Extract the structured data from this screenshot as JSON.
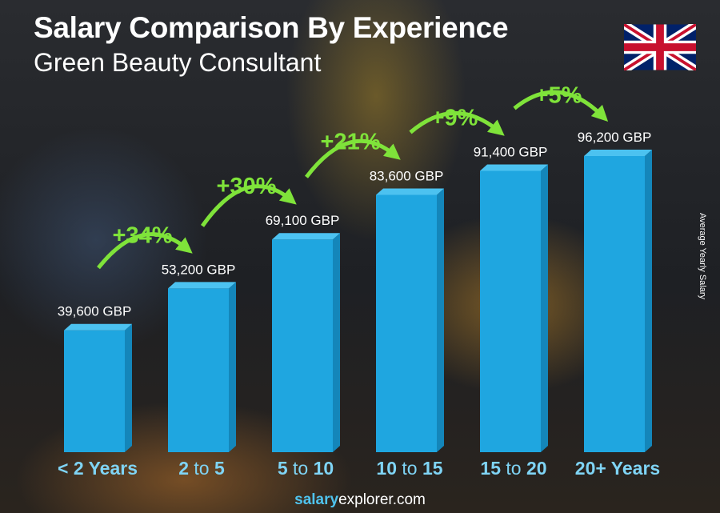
{
  "chart_data": {
    "type": "bar",
    "title": "Salary Comparison By Experience",
    "subtitle": "Green Beauty Consultant",
    "ylabel": "Average Yearly Salary",
    "categories": [
      "< 2 Years",
      "2 to 5",
      "5 to 10",
      "10 to 15",
      "15 to 20",
      "20+ Years"
    ],
    "values": [
      39600,
      53200,
      69100,
      83600,
      91400,
      96200
    ],
    "value_labels": [
      "39,600 GBP",
      "53,200 GBP",
      "69,100 GBP",
      "83,600 GBP",
      "91,400 GBP",
      "96,200 GBP"
    ],
    "increase_labels": [
      "+34%",
      "+30%",
      "+21%",
      "+9%",
      "+5%"
    ],
    "unit": "GBP",
    "grid": false,
    "colors": {
      "bar": "#1fa6e0",
      "bar_side": "#1486ba",
      "bar_top": "#4cc2f0",
      "increase": "#7fe33a",
      "category": "#7fd4f5"
    }
  },
  "flag": "united-kingdom-flag",
  "footer": {
    "brand_bold": "salary",
    "brand_rest": "explorer",
    "brand_tld": ".com"
  }
}
